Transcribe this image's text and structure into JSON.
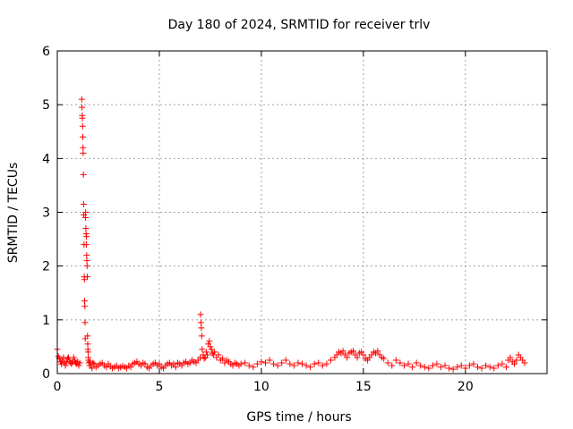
{
  "chart_data": {
    "type": "scatter",
    "title": "Day 180 of 2024, SRMTID for receiver trlv",
    "xlabel": "GPS time / hours",
    "ylabel": "SRMTID / TECUs",
    "xlim": [
      0,
      24
    ],
    "ylim": [
      0,
      6
    ],
    "xticks": [
      0,
      5,
      10,
      15,
      20
    ],
    "yticks": [
      0,
      1,
      2,
      3,
      4,
      5,
      6
    ],
    "grid": true,
    "marker": "+",
    "color": "#ff0000",
    "series": [
      {
        "x": [
          0.0,
          0.05,
          0.1,
          0.15,
          0.2,
          0.25,
          0.3,
          0.35,
          0.4,
          0.45,
          0.5,
          0.55,
          0.6,
          0.65,
          0.7,
          0.75,
          0.8,
          0.85,
          0.9,
          0.95,
          1.0,
          1.05,
          1.1,
          1.2,
          1.21,
          1.22,
          1.23,
          1.24,
          1.25,
          1.26,
          1.27,
          1.28,
          1.29,
          1.3,
          1.31,
          1.32,
          1.33,
          1.34,
          1.35,
          1.36,
          1.37,
          1.38,
          1.39,
          1.4,
          1.41,
          1.42,
          1.43,
          1.44,
          1.45,
          1.46,
          1.47,
          1.48,
          1.49,
          1.5,
          1.51,
          1.52,
          1.53,
          1.55,
          1.58,
          1.6,
          1.65,
          1.7,
          1.75,
          1.8,
          1.9,
          2.0,
          2.1,
          2.2,
          2.3,
          2.4,
          2.5,
          2.6,
          2.7,
          2.8,
          2.9,
          3.0,
          3.1,
          3.2,
          3.3,
          3.4,
          3.5,
          3.6,
          3.7,
          3.8,
          3.9,
          4.0,
          4.1,
          4.2,
          4.3,
          4.4,
          4.5,
          4.6,
          4.7,
          4.8,
          4.9,
          5.0,
          5.1,
          5.2,
          5.3,
          5.4,
          5.5,
          5.6,
          5.7,
          5.8,
          5.9,
          6.0,
          6.1,
          6.2,
          6.3,
          6.4,
          6.5,
          6.6,
          6.7,
          6.8,
          6.9,
          7.0,
          7.02,
          7.04,
          7.06,
          7.08,
          7.1,
          7.15,
          7.2,
          7.25,
          7.3,
          7.35,
          7.4,
          7.45,
          7.5,
          7.55,
          7.6,
          7.65,
          7.7,
          7.8,
          7.9,
          8.0,
          8.1,
          8.2,
          8.3,
          8.4,
          8.5,
          8.6,
          8.7,
          8.8,
          8.9,
          9.0,
          9.2,
          9.4,
          9.6,
          9.8,
          10.0,
          10.2,
          10.4,
          10.6,
          10.8,
          11.0,
          11.2,
          11.4,
          11.6,
          11.8,
          12.0,
          12.2,
          12.4,
          12.6,
          12.8,
          13.0,
          13.2,
          13.4,
          13.6,
          13.7,
          13.8,
          13.9,
          14.0,
          14.1,
          14.2,
          14.3,
          14.4,
          14.5,
          14.6,
          14.7,
          14.8,
          14.9,
          15.0,
          15.1,
          15.2,
          15.3,
          15.4,
          15.5,
          15.6,
          15.7,
          15.8,
          15.9,
          16.0,
          16.2,
          16.4,
          16.6,
          16.8,
          17.0,
          17.2,
          17.4,
          17.6,
          17.8,
          18.0,
          18.2,
          18.4,
          18.6,
          18.8,
          19.0,
          19.2,
          19.4,
          19.6,
          19.8,
          20.0,
          20.2,
          20.4,
          20.6,
          20.8,
          21.0,
          21.2,
          21.4,
          21.6,
          21.8,
          22.0,
          22.1,
          22.2,
          22.3,
          22.4,
          22.5,
          22.6,
          22.7,
          22.8,
          22.9
        ],
        "y": [
          0.45,
          0.32,
          0.28,
          0.22,
          0.18,
          0.25,
          0.3,
          0.2,
          0.15,
          0.22,
          0.28,
          0.3,
          0.25,
          0.2,
          0.18,
          0.22,
          0.3,
          0.25,
          0.2,
          0.18,
          0.22,
          0.15,
          0.2,
          5.1,
          4.95,
          4.8,
          4.75,
          4.6,
          4.4,
          4.2,
          4.1,
          3.7,
          3.15,
          2.95,
          2.4,
          1.8,
          1.75,
          1.35,
          1.25,
          0.95,
          0.65,
          2.9,
          3.0,
          2.7,
          2.6,
          2.4,
          2.55,
          2.2,
          2.1,
          2.0,
          1.8,
          0.7,
          0.55,
          0.45,
          0.4,
          0.3,
          0.25,
          0.2,
          0.15,
          0.22,
          0.15,
          0.1,
          0.2,
          0.18,
          0.12,
          0.15,
          0.18,
          0.2,
          0.15,
          0.12,
          0.18,
          0.14,
          0.1,
          0.12,
          0.15,
          0.1,
          0.12,
          0.14,
          0.12,
          0.1,
          0.15,
          0.12,
          0.18,
          0.2,
          0.22,
          0.18,
          0.15,
          0.2,
          0.18,
          0.12,
          0.1,
          0.15,
          0.18,
          0.2,
          0.15,
          0.18,
          0.12,
          0.1,
          0.15,
          0.18,
          0.2,
          0.15,
          0.18,
          0.12,
          0.2,
          0.18,
          0.15,
          0.2,
          0.22,
          0.18,
          0.2,
          0.25,
          0.22,
          0.2,
          0.25,
          0.3,
          1.1,
          0.95,
          0.85,
          0.7,
          0.45,
          0.35,
          0.28,
          0.3,
          0.4,
          0.35,
          0.55,
          0.6,
          0.5,
          0.45,
          0.38,
          0.35,
          0.4,
          0.3,
          0.35,
          0.25,
          0.28,
          0.2,
          0.25,
          0.22,
          0.18,
          0.15,
          0.2,
          0.18,
          0.15,
          0.18,
          0.2,
          0.15,
          0.12,
          0.18,
          0.22,
          0.2,
          0.25,
          0.18,
          0.15,
          0.2,
          0.25,
          0.18,
          0.15,
          0.2,
          0.18,
          0.15,
          0.12,
          0.18,
          0.2,
          0.15,
          0.18,
          0.25,
          0.3,
          0.35,
          0.4,
          0.38,
          0.42,
          0.35,
          0.3,
          0.38,
          0.4,
          0.42,
          0.35,
          0.3,
          0.38,
          0.4,
          0.35,
          0.28,
          0.25,
          0.3,
          0.35,
          0.4,
          0.38,
          0.42,
          0.35,
          0.3,
          0.28,
          0.2,
          0.15,
          0.25,
          0.2,
          0.15,
          0.18,
          0.12,
          0.2,
          0.15,
          0.12,
          0.1,
          0.15,
          0.18,
          0.12,
          0.15,
          0.1,
          0.08,
          0.12,
          0.15,
          0.1,
          0.15,
          0.18,
          0.12,
          0.1,
          0.15,
          0.12,
          0.1,
          0.15,
          0.18,
          0.12,
          0.25,
          0.3,
          0.22,
          0.18,
          0.25,
          0.35,
          0.3,
          0.25,
          0.2
        ]
      }
    ]
  }
}
